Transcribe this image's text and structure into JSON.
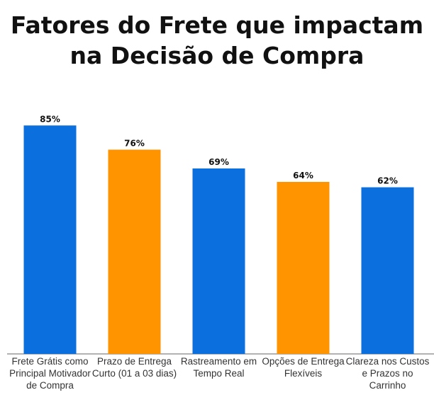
{
  "title_lines": [
    "Fatores do Frete que impactam",
    "na Decisão de Compra"
  ],
  "colors": {
    "blue": "#0B6FDE",
    "orange": "#FF9400",
    "axis": "#666666",
    "label": "#111111"
  },
  "chart_data": {
    "type": "bar",
    "title": "Fatores do Frete que impactam na Decisão de Compra",
    "categories": [
      "Frete Grátis como Principal Motivador de Compra",
      "Prazo de Entrega Curto (01 a 03 dias)",
      "Rastreamento em Tempo Real",
      "Opções de Entrega Flexíveis",
      "Clareza nos Custos e Prazos no Carrinho"
    ],
    "values": [
      85,
      76,
      69,
      64,
      62
    ],
    "value_labels": [
      "85%",
      "76%",
      "69%",
      "64%",
      "62%"
    ],
    "bar_colors": [
      "#0B6FDE",
      "#FF9400",
      "#0B6FDE",
      "#FF9400",
      "#0B6FDE"
    ],
    "xlabel": "",
    "ylabel": "",
    "ylim": [
      0,
      100
    ],
    "grid": false,
    "legend": "none"
  }
}
